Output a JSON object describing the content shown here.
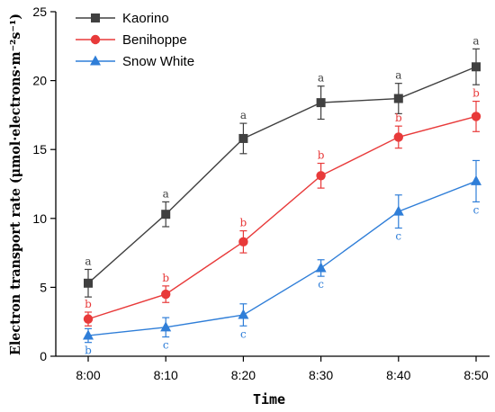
{
  "chart_data": {
    "type": "line",
    "xlabel": "Time",
    "ylabel": "Electron transport rate (μmol·electrons·m⁻²s⁻¹)",
    "categories": [
      "8:00",
      "8:10",
      "8:20",
      "8:30",
      "8:40",
      "8:50"
    ],
    "ylim": [
      0,
      25
    ],
    "yticks": [
      "0",
      "5",
      "10",
      "15",
      "20",
      "25"
    ],
    "legend_position": "top-left",
    "grid": false,
    "series": [
      {
        "name": "Kaorino",
        "color": "#404040",
        "marker": "square",
        "values": [
          5.3,
          10.3,
          15.8,
          18.4,
          18.7,
          21.0
        ],
        "errors": [
          1.0,
          0.9,
          1.1,
          1.2,
          1.1,
          1.3
        ],
        "letters": [
          "a",
          "a",
          "a",
          "a",
          "a",
          "a"
        ]
      },
      {
        "name": "Benihoppe",
        "color": "#e83a3a",
        "marker": "circle",
        "values": [
          2.7,
          4.5,
          8.3,
          13.1,
          15.9,
          17.4
        ],
        "errors": [
          0.5,
          0.6,
          0.8,
          0.9,
          0.8,
          1.1
        ],
        "letters": [
          "b",
          "b",
          "b",
          "b",
          "b",
          "b"
        ]
      },
      {
        "name": "Snow White",
        "color": "#2f7ed8",
        "marker": "triangle",
        "values": [
          1.5,
          2.1,
          3.0,
          6.4,
          10.5,
          12.7
        ],
        "errors": [
          0.5,
          0.7,
          0.8,
          0.6,
          1.2,
          1.5
        ],
        "letters": [
          "b",
          "c",
          "c",
          "c",
          "c",
          "c"
        ]
      }
    ]
  }
}
